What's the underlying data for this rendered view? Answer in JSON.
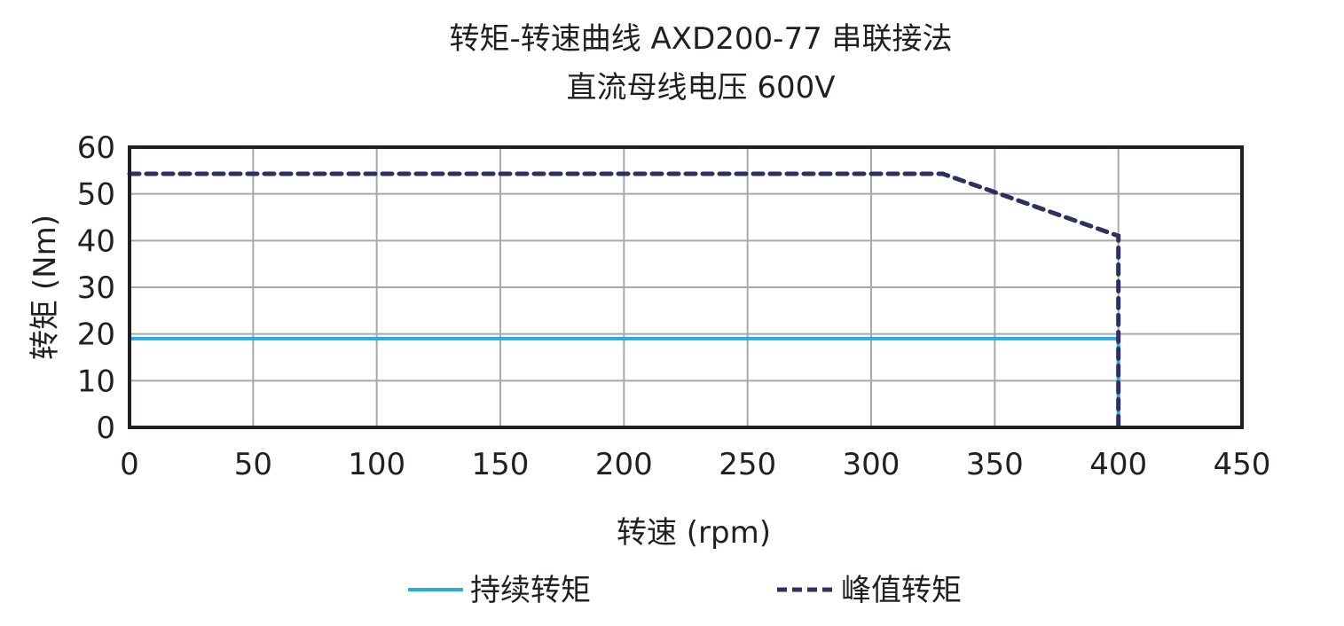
{
  "chart_data": {
    "type": "line",
    "title": "转矩-转速曲线 AXD200-77 串联接法",
    "subtitle": "直流母线电压 600V",
    "xlabel": "转速 (rpm)",
    "ylabel": "转矩 (Nm)",
    "xlim": [
      0,
      450
    ],
    "ylim": [
      0,
      60
    ],
    "xticks": [
      0,
      50,
      100,
      150,
      200,
      250,
      300,
      350,
      400,
      450
    ],
    "yticks": [
      0,
      10,
      20,
      30,
      40,
      50,
      60
    ],
    "grid": true,
    "legend_position": "bottom",
    "series": [
      {
        "name": "持续转矩",
        "style": "solid",
        "color": "#29abe2",
        "x": [
          0,
          400,
          400
        ],
        "y": [
          19,
          19,
          0
        ]
      },
      {
        "name": "峰值转矩",
        "style": "dashed",
        "color": "#2e3160",
        "x": [
          0,
          329,
          400,
          400
        ],
        "y": [
          54.3,
          54.3,
          41,
          0
        ]
      }
    ]
  }
}
